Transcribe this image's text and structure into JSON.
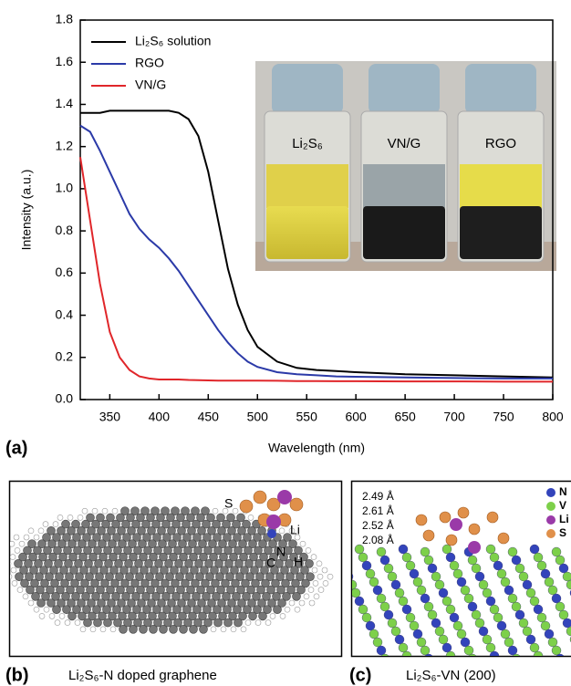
{
  "chart_data": {
    "type": "line",
    "xlabel": "Wavelength (nm)",
    "ylabel": "Intensity (a.u.)",
    "x": [
      320,
      330,
      340,
      350,
      360,
      370,
      380,
      390,
      400,
      410,
      420,
      430,
      440,
      450,
      460,
      470,
      480,
      490,
      500,
      520,
      540,
      560,
      580,
      600,
      650,
      700,
      750,
      800
    ],
    "series": [
      {
        "name": "Li₂S₆ solution",
        "color": "#000000",
        "values": [
          1.36,
          1.36,
          1.36,
          1.37,
          1.37,
          1.37,
          1.37,
          1.37,
          1.37,
          1.37,
          1.36,
          1.33,
          1.25,
          1.08,
          0.85,
          0.62,
          0.45,
          0.33,
          0.25,
          0.18,
          0.15,
          0.14,
          0.135,
          0.13,
          0.12,
          0.115,
          0.11,
          0.105
        ]
      },
      {
        "name": "RGO",
        "color": "#2b3aa8",
        "values": [
          1.3,
          1.27,
          1.18,
          1.08,
          0.98,
          0.88,
          0.81,
          0.76,
          0.72,
          0.67,
          0.61,
          0.54,
          0.47,
          0.4,
          0.33,
          0.27,
          0.22,
          0.18,
          0.155,
          0.13,
          0.12,
          0.115,
          0.11,
          0.108,
          0.105,
          0.102,
          0.1,
          0.1
        ]
      },
      {
        "name": "VN/G",
        "color": "#e0262a",
        "values": [
          1.15,
          0.85,
          0.55,
          0.32,
          0.2,
          0.14,
          0.11,
          0.1,
          0.095,
          0.095,
          0.095,
          0.093,
          0.092,
          0.091,
          0.09,
          0.09,
          0.09,
          0.09,
          0.09,
          0.089,
          0.088,
          0.088,
          0.087,
          0.087,
          0.086,
          0.086,
          0.085,
          0.085
        ]
      }
    ],
    "xlim": [
      320,
      800
    ],
    "xticks": [
      350,
      400,
      450,
      500,
      550,
      600,
      650,
      700,
      750,
      800
    ],
    "ylim": [
      0,
      1.8
    ],
    "yticks": [
      {
        "value": 0,
        "label": "0.0"
      },
      0.2,
      0.4,
      0.6,
      0.8,
      {
        "value": 1,
        "label": "1.0"
      },
      1.2,
      1.4,
      1.6,
      1.8
    ],
    "legend": "upper left",
    "inset_labels": [
      "Li₂S₆",
      "VN/G",
      "RGO"
    ]
  },
  "panel_a": {
    "label": "(a)"
  },
  "panel_b": {
    "label": "(b)",
    "caption": "Li₂S₆-N doped graphene",
    "atoms": [
      "S",
      "Li",
      "N",
      "C",
      "H"
    ]
  },
  "panel_c": {
    "label": "(c)",
    "caption": "Li₂S₆-VN (200)",
    "distances": [
      "2.49 Å",
      "2.61 Å",
      "2.52 Å",
      "2.08 Å"
    ],
    "legend": [
      "N",
      "V",
      "Li",
      "S"
    ]
  }
}
